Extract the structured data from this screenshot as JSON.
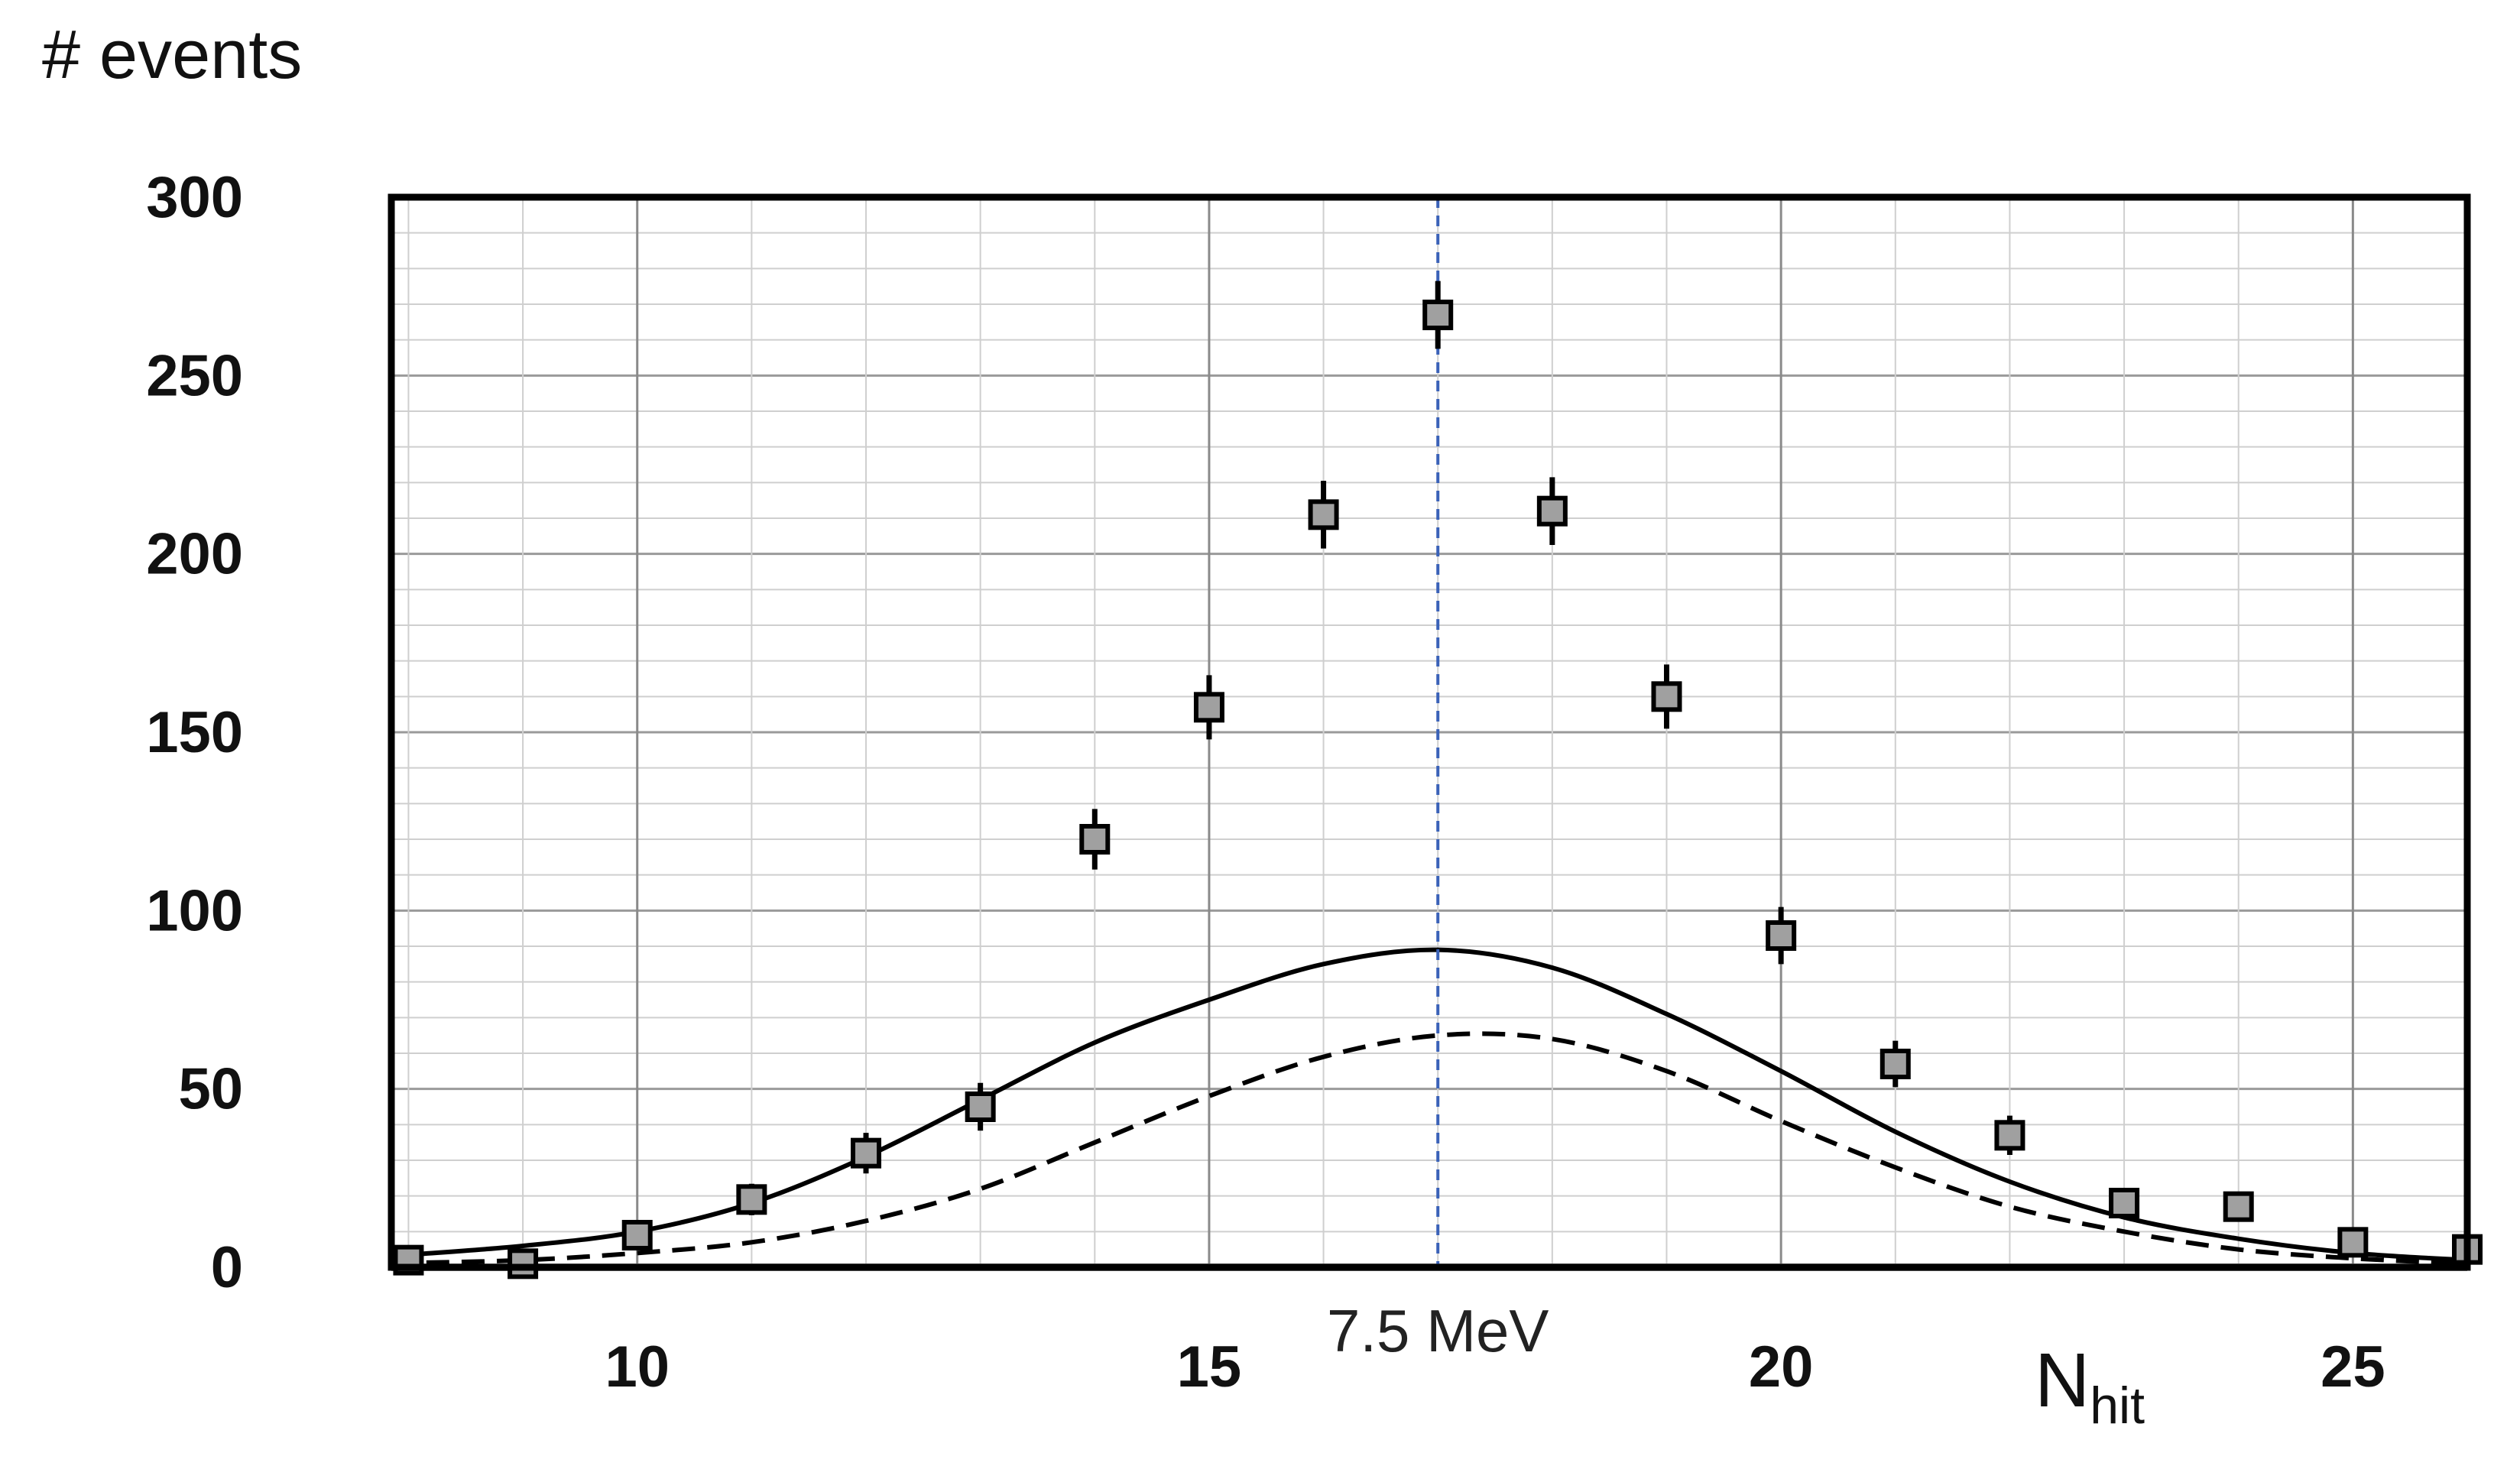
{
  "chart_data": {
    "type": "scatter",
    "ylabel": "# events",
    "xlabel": "N",
    "xlabel_subscript": "hit",
    "xlim": [
      7.85,
      26.0
    ],
    "ylim": [
      0,
      300
    ],
    "xticks": [
      10,
      15,
      20,
      25
    ],
    "yticks": [
      0,
      50,
      100,
      150,
      200,
      250,
      300
    ],
    "grid": true,
    "minor_x_step": 1,
    "minor_y_step": 10,
    "vertical_marker": {
      "x": 17.0,
      "label": "7.5 MeV",
      "color": "#3a62b8",
      "style": "dashed"
    },
    "series": [
      {
        "kind": "points",
        "marker": "square",
        "color": "#a0a0a0",
        "x": [
          8,
          9,
          10,
          11,
          12,
          13,
          14,
          15,
          16,
          17,
          18,
          19,
          20,
          21,
          22,
          23,
          24,
          25,
          26
        ],
        "y": [
          2,
          1,
          9,
          19,
          32,
          45,
          120,
          157,
          211,
          267,
          212,
          160,
          93,
          57,
          37,
          18,
          17,
          7,
          5
        ],
        "yerr": [
          1.4,
          1,
          3,
          4.4,
          5.7,
          6.7,
          8.5,
          9,
          9.5,
          9.5,
          9.5,
          9,
          8,
          6.5,
          5.5,
          4,
          4,
          2.6,
          2.2
        ]
      },
      {
        "kind": "curve",
        "style": "solid",
        "color": "#000000",
        "x": [
          7.85,
          8,
          9,
          10,
          11,
          12,
          13,
          14,
          15,
          16,
          17,
          18,
          19,
          20,
          21,
          22,
          23,
          24,
          25,
          26
        ],
        "y": [
          3,
          3.5,
          6,
          10,
          18,
          31,
          47,
          63,
          75,
          85,
          89,
          84,
          71,
          55,
          38,
          24,
          14,
          8,
          4,
          2
        ]
      },
      {
        "kind": "curve",
        "style": "dashed",
        "color": "#000000",
        "x": [
          7.85,
          8,
          9,
          10,
          11,
          12,
          13,
          14,
          15,
          16,
          17,
          18,
          19,
          20,
          21,
          22,
          23,
          24,
          25,
          26
        ],
        "y": [
          1,
          1.2,
          2,
          4,
          7,
          13,
          22,
          35,
          48,
          59,
          65,
          64,
          55,
          41,
          28,
          17,
          10,
          5,
          2.5,
          1
        ]
      }
    ]
  }
}
